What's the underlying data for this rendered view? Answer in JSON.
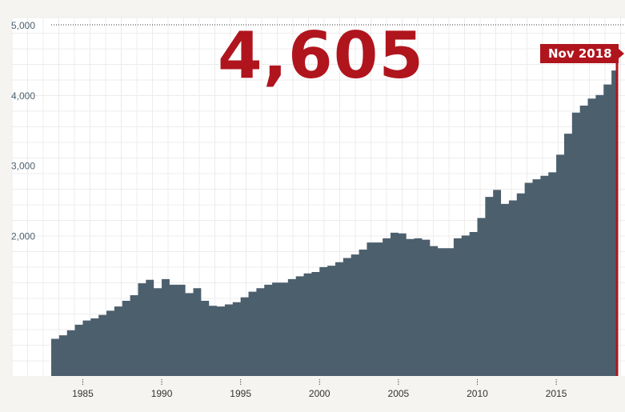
{
  "headline_value": "4,605",
  "flag_label": "Nov 2018",
  "colors": {
    "background": "#f5f4f0",
    "plot_background": "#ffffff",
    "area_fill": "#4c5f6d",
    "accent": "#b0151e",
    "grid": "#ececec",
    "axis_text": "#4c5f6d"
  },
  "chart_data": {
    "type": "area",
    "title": "",
    "xlabel": "",
    "ylabel": "",
    "xlim": [
      1983.0,
      2018.9
    ],
    "ylim": [
      0,
      5000
    ],
    "yticks": [
      2000,
      3000,
      4000,
      5000
    ],
    "ytick_labels": [
      "2,000",
      "3,000",
      "4,000",
      "5,000"
    ],
    "xticks": [
      1985,
      1990,
      1995,
      2000,
      2005,
      2010,
      2015
    ],
    "xtick_labels": [
      "1985",
      "1990",
      "1995",
      "2000",
      "2005",
      "2010",
      "2015"
    ],
    "grid": true,
    "step": true,
    "series": [
      {
        "x": [
          1983.0,
          1983.5,
          1984.0,
          1984.5,
          1985.0,
          1985.5,
          1986.0,
          1986.5,
          1987.0,
          1987.5,
          1988.0,
          1988.5,
          1989.0,
          1989.5,
          1990.0,
          1990.5,
          1991.0,
          1991.5,
          1992.0,
          1992.5,
          1993.0,
          1993.5,
          1994.0,
          1994.5,
          1995.0,
          1995.5,
          1996.0,
          1996.5,
          1997.0,
          1997.5,
          1998.0,
          1998.5,
          1999.0,
          1999.5,
          2000.0,
          2000.5,
          2001.0,
          2001.5,
          2002.0,
          2002.5,
          2003.0,
          2003.5,
          2004.0,
          2004.5,
          2005.0,
          2005.5,
          2006.0,
          2006.5,
          2007.0,
          2007.5,
          2008.0,
          2008.5,
          2009.0,
          2009.5,
          2010.0,
          2010.5,
          2011.0,
          2011.5,
          2012.0,
          2012.5,
          2013.0,
          2013.5,
          2014.0,
          2014.5,
          2015.0,
          2015.5,
          2016.0,
          2016.5,
          2017.0,
          2017.5,
          2018.0,
          2018.5,
          2018.85
        ],
        "values": [
          530,
          580,
          650,
          730,
          790,
          820,
          870,
          930,
          990,
          1070,
          1150,
          1320,
          1370,
          1250,
          1380,
          1300,
          1300,
          1180,
          1250,
          1070,
          1000,
          990,
          1020,
          1050,
          1120,
          1200,
          1250,
          1300,
          1330,
          1330,
          1380,
          1420,
          1460,
          1480,
          1550,
          1570,
          1620,
          1680,
          1730,
          1800,
          1900,
          1900,
          1960,
          2040,
          2030,
          1950,
          1960,
          1940,
          1850,
          1820,
          1820,
          1960,
          2000,
          2050,
          2250,
          2550,
          2650,
          2450,
          2500,
          2600,
          2750,
          2800,
          2850,
          2900,
          3150,
          3450,
          3750,
          3850,
          3950,
          4000,
          4150,
          4350,
          4605
        ]
      }
    ]
  }
}
